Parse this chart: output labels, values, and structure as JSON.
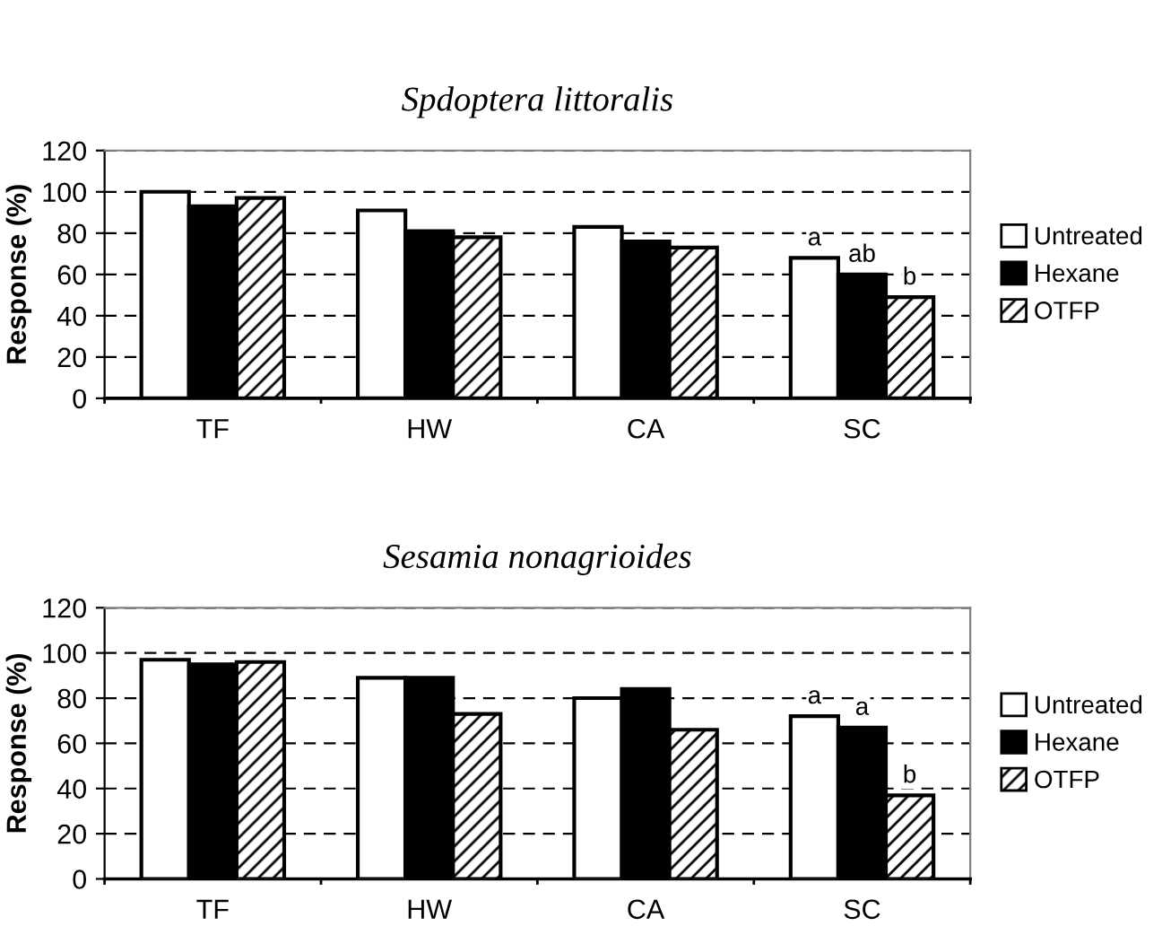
{
  "chart_data": [
    {
      "type": "bar",
      "title": "Spdoptera littoralis",
      "ylabel": "Response (%)",
      "categories": [
        "TF",
        "HW",
        "CA",
        "SC"
      ],
      "series": [
        {
          "name": "Untreated",
          "color": "#ffffff",
          "values": [
            100,
            91,
            83,
            68
          ]
        },
        {
          "name": "Hexane",
          "color": "#000000",
          "values": [
            93,
            81,
            76,
            60
          ]
        },
        {
          "name": "OTFP",
          "color": "#000000",
          "values": [
            97,
            78,
            73,
            49
          ]
        }
      ],
      "ylim": [
        0,
        120
      ],
      "yticks": [
        0,
        20,
        40,
        60,
        80,
        100,
        120
      ],
      "grid": "y",
      "legend": "right",
      "annotations": [
        "a",
        "ab",
        "b"
      ]
    },
    {
      "type": "bar",
      "title": "Sesamia nonagrioides",
      "ylabel": "Response (%)",
      "categories": [
        "TF",
        "HW",
        "CA",
        "SC"
      ],
      "series": [
        {
          "name": "Untreated",
          "color": "#ffffff",
          "values": [
            97,
            89,
            80,
            72
          ]
        },
        {
          "name": "Hexane",
          "color": "#000000",
          "values": [
            95,
            89,
            84,
            67
          ]
        },
        {
          "name": "OTFP",
          "color": "#000000",
          "values": [
            96,
            73,
            66,
            37
          ]
        }
      ],
      "ylim": [
        0,
        120
      ],
      "yticks": [
        0,
        20,
        40,
        60,
        80,
        100,
        120
      ],
      "grid": "y",
      "legend": "right",
      "annotations": [
        "a",
        "a",
        "b"
      ]
    }
  ]
}
